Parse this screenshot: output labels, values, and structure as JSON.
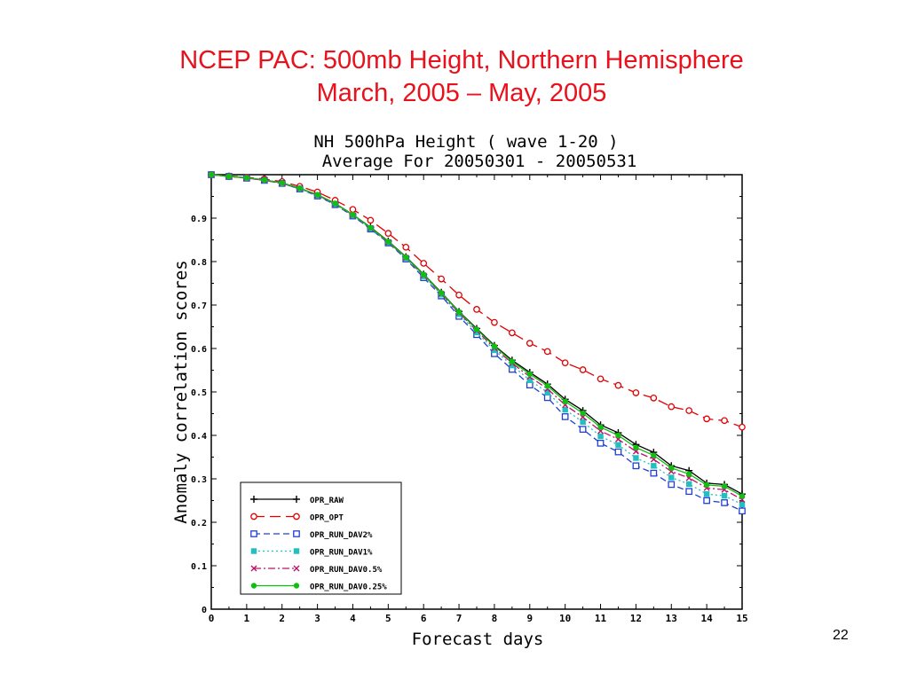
{
  "slide": {
    "title_line1": "NCEP PAC: 500mb Height, Northern Hemisphere",
    "title_line2": "March, 2005 – May, 2005",
    "page_number": "22"
  },
  "chart_data": {
    "type": "line",
    "title": "NH 500hPa Height ( wave 1-20 )",
    "subtitle": "Average For 20050301 - 20050531",
    "xlabel": "Forecast days",
    "ylabel": "Anomaly correlation scores",
    "xlim": [
      0,
      15
    ],
    "ylim": [
      0,
      1
    ],
    "xticks": [
      0,
      1,
      2,
      3,
      4,
      5,
      6,
      7,
      8,
      9,
      10,
      11,
      12,
      13,
      14,
      15
    ],
    "yticks": [
      0,
      0.1,
      0.2,
      0.3,
      0.4,
      0.5,
      0.6,
      0.7,
      0.8,
      0.9
    ],
    "ytick_labels": [
      "0",
      "0.1",
      "0.2",
      "0.3",
      "0.4",
      "0.5",
      "0.6",
      "0.7",
      "0.8",
      "0.9"
    ],
    "grid": false,
    "legend_position": "lower-left",
    "x": [
      0,
      0.5,
      1,
      1.5,
      2,
      2.5,
      3,
      3.5,
      4,
      4.5,
      5,
      5.5,
      6,
      6.5,
      7,
      7.5,
      8,
      8.5,
      9,
      9.5,
      10,
      10.5,
      11,
      11.5,
      12,
      12.5,
      13,
      13.5,
      14,
      14.5,
      15
    ],
    "series": [
      {
        "name": "OPR_RAW",
        "color": "#000000",
        "dash": "solid",
        "marker": "plus",
        "values": [
          1.0,
          0.996,
          0.993,
          0.988,
          0.981,
          0.969,
          0.954,
          0.934,
          0.908,
          0.879,
          0.847,
          0.811,
          0.771,
          0.729,
          0.685,
          0.646,
          0.607,
          0.573,
          0.545,
          0.518,
          0.483,
          0.457,
          0.424,
          0.406,
          0.379,
          0.361,
          0.33,
          0.319,
          0.29,
          0.287,
          0.265
        ]
      },
      {
        "name": "OPR_OPT",
        "color": "#e00000",
        "dash": "long",
        "marker": "circle",
        "values": [
          1.0,
          0.997,
          0.994,
          0.99,
          0.984,
          0.973,
          0.96,
          0.941,
          0.92,
          0.895,
          0.865,
          0.833,
          0.796,
          0.76,
          0.723,
          0.69,
          0.66,
          0.636,
          0.612,
          0.593,
          0.567,
          0.551,
          0.53,
          0.515,
          0.498,
          0.486,
          0.466,
          0.457,
          0.438,
          0.434,
          0.419
        ]
      },
      {
        "name": "OPR_RUN_DAV2%",
        "color": "#2040d0",
        "dash": "medium",
        "marker": "square",
        "values": [
          1.0,
          0.996,
          0.992,
          0.987,
          0.98,
          0.967,
          0.951,
          0.931,
          0.905,
          0.875,
          0.843,
          0.806,
          0.763,
          0.721,
          0.674,
          0.632,
          0.588,
          0.552,
          0.516,
          0.487,
          0.443,
          0.414,
          0.382,
          0.362,
          0.33,
          0.313,
          0.287,
          0.271,
          0.25,
          0.245,
          0.226
        ]
      },
      {
        "name": "OPR_RUN_DAV1%",
        "color": "#20c0c0",
        "dash": "dotted",
        "marker": "filled-square",
        "values": [
          1.0,
          0.996,
          0.992,
          0.987,
          0.98,
          0.967,
          0.952,
          0.932,
          0.906,
          0.876,
          0.844,
          0.808,
          0.766,
          0.724,
          0.679,
          0.637,
          0.596,
          0.561,
          0.527,
          0.499,
          0.459,
          0.431,
          0.398,
          0.378,
          0.348,
          0.33,
          0.303,
          0.288,
          0.265,
          0.261,
          0.241
        ]
      },
      {
        "name": "OPR_RUN_DAV0.5%",
        "color": "#c0106a",
        "dash": "dashdot",
        "marker": "cross",
        "values": [
          1.0,
          0.996,
          0.992,
          0.987,
          0.98,
          0.968,
          0.953,
          0.933,
          0.907,
          0.877,
          0.845,
          0.809,
          0.768,
          0.726,
          0.682,
          0.641,
          0.601,
          0.566,
          0.535,
          0.507,
          0.47,
          0.442,
          0.41,
          0.391,
          0.363,
          0.345,
          0.317,
          0.302,
          0.279,
          0.275,
          0.252
        ]
      },
      {
        "name": "OPR_RUN_DAV0.25%",
        "color": "#10c010",
        "dash": "solid",
        "marker": "filled-circle",
        "values": [
          1.0,
          0.996,
          0.993,
          0.988,
          0.981,
          0.969,
          0.954,
          0.934,
          0.908,
          0.878,
          0.846,
          0.81,
          0.77,
          0.728,
          0.684,
          0.644,
          0.605,
          0.57,
          0.541,
          0.514,
          0.478,
          0.451,
          0.419,
          0.4,
          0.372,
          0.354,
          0.325,
          0.311,
          0.286,
          0.283,
          0.26
        ]
      }
    ]
  }
}
